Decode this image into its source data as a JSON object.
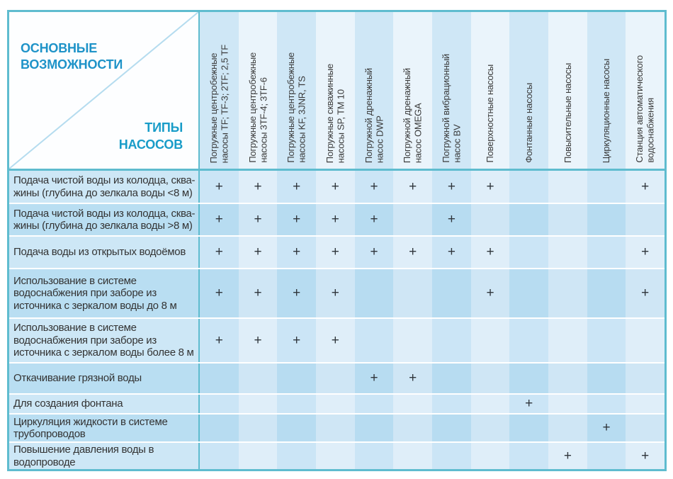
{
  "table": {
    "corner": {
      "top_label": "ОСНОВНЫЕ\nВОЗМОЖНОСТИ",
      "bottom_label": "ТИПЫ\nНАСОСОВ"
    },
    "columns": [
      "Погружные центробежные\nнасосы TF; TF-3; 2TF; 2,5 TF",
      "Погружные центробежные\nнасосы 3TF-4; 3TF-6",
      "Погружные центробежные\nнасосы KF, 3JNR, TS",
      "Погружные скважинные\nнасосы SP, TM 10",
      "Погружной дренажный\nнасос DWP",
      "Погружной дренажный\nнасос OMEGA",
      "Погружной вибрационный\nнасос BV",
      "Поверхностные насосы",
      "Фонтанные насосы",
      "Повысительные насосы",
      "Циркуляционные насосы",
      "Станция автоматического\nводоснабжения"
    ],
    "rows": [
      {
        "label": "Подача чистой воды из колодца, сква-\nжины (глубина до зелкала воды <8 м)",
        "marks": [
          "+",
          "+",
          "+",
          "+",
          "+",
          "+",
          "+",
          "+",
          "",
          "",
          "",
          "+"
        ]
      },
      {
        "label": "Подача чистой воды из колодца, сква-\nжины (глубина до зелкала воды >8 м)",
        "marks": [
          "+",
          "+",
          "+",
          "+",
          "+",
          "",
          "+",
          "",
          "",
          "",
          "",
          ""
        ]
      },
      {
        "label": "Подача воды из открытых водоёмов",
        "marks": [
          "+",
          "+",
          "+",
          "+",
          "+",
          "+",
          "+",
          "+",
          "",
          "",
          "",
          "+"
        ]
      },
      {
        "label": "Использование в системе\nводоснабжения при заборе из\nисточника с зеркалом воды до 8 м",
        "marks": [
          "+",
          "+",
          "+",
          "+",
          "",
          "",
          "",
          "+",
          "",
          "",
          "",
          "+"
        ]
      },
      {
        "label": "Использование в системе\nводоснабжения при заборе из\nисточника с зеркалом воды более 8 м",
        "marks": [
          "+",
          "+",
          "+",
          "+",
          "",
          "",
          "",
          "",
          "",
          "",
          "",
          ""
        ]
      },
      {
        "label": "Откачивание грязной воды",
        "marks": [
          "",
          "",
          "",
          "",
          "+",
          "+",
          "",
          "",
          "",
          "",
          "",
          ""
        ]
      },
      {
        "label": "Для создания фонтана",
        "marks": [
          "",
          "",
          "",
          "",
          "",
          "",
          "",
          "",
          "+",
          "",
          "",
          ""
        ]
      },
      {
        "label": "Циркуляция жидкости в системе\nтрубопроводов",
        "marks": [
          "",
          "",
          "",
          "",
          "",
          "",
          "",
          "",
          "",
          "",
          "+",
          ""
        ]
      },
      {
        "label": "Повышение давления воды в\nводопроводе",
        "marks": [
          "",
          "",
          "",
          "",
          "",
          "",
          "",
          "",
          "",
          "+",
          "",
          "+"
        ]
      }
    ],
    "mark_symbol": "+",
    "colors": {
      "accent_text_blue": "#1e93c8",
      "table_border_teal": "#5fbccf",
      "header_col_odd": "#cfe7f6",
      "header_col_even": "#eaf4fb",
      "cell_oddrow_oddcol": "#cbe5f6",
      "cell_oddrow_evencol": "#dfeef9",
      "cell_evenrow_oddcol": "#b7dcf1",
      "cell_evenrow_evencol": "#cfe6f5",
      "label_row_odd": "#cde7f6",
      "label_row_even": "#b9def2",
      "text_dark": "#333333"
    }
  }
}
